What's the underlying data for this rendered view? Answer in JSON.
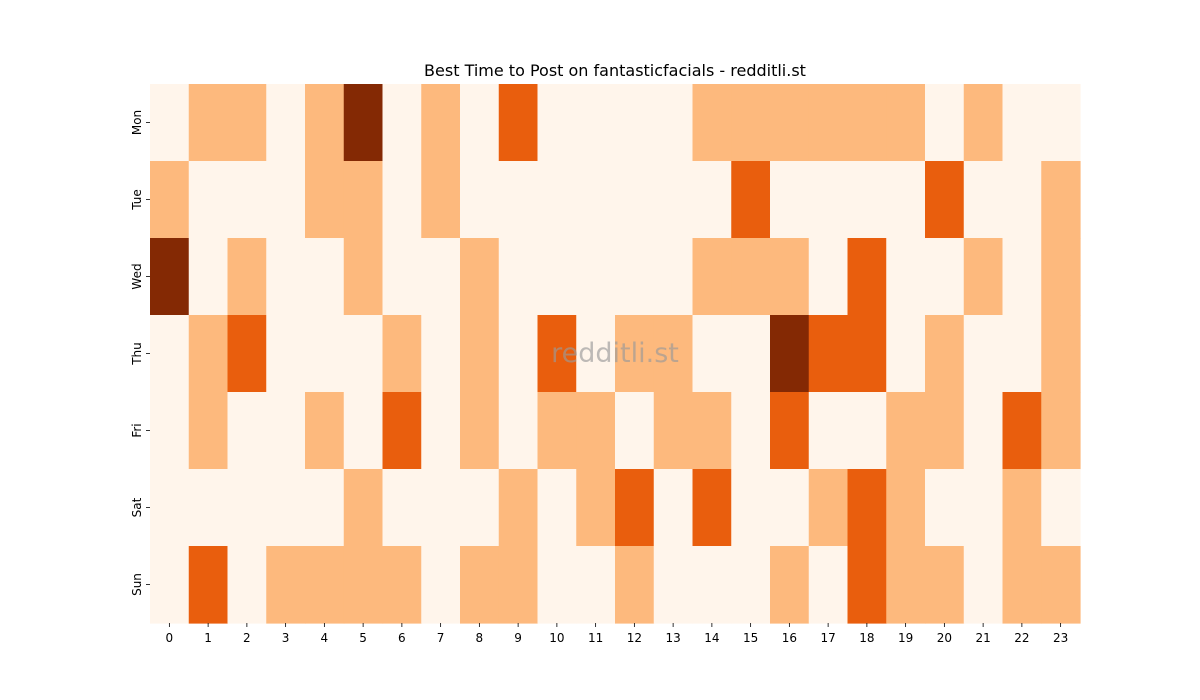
{
  "chart_data": {
    "type": "heatmap",
    "title": "Best Time to Post on fantasticfacials - redditli.st",
    "xlabel": "",
    "ylabel": "",
    "x": [
      "0",
      "1",
      "2",
      "3",
      "4",
      "5",
      "6",
      "7",
      "8",
      "9",
      "10",
      "11",
      "12",
      "13",
      "14",
      "15",
      "16",
      "17",
      "18",
      "19",
      "20",
      "21",
      "22",
      "23"
    ],
    "y": [
      "Mon",
      "Tue",
      "Wed",
      "Thu",
      "Fri",
      "Sat",
      "Sun"
    ],
    "values": [
      [
        0,
        1,
        1,
        0,
        1,
        3,
        0,
        1,
        0,
        2,
        0,
        0,
        0,
        0,
        1,
        1,
        1,
        1,
        1,
        1,
        0,
        1,
        0,
        0
      ],
      [
        1,
        0,
        0,
        0,
        1,
        1,
        0,
        1,
        0,
        0,
        0,
        0,
        0,
        0,
        0,
        2,
        0,
        0,
        0,
        0,
        2,
        0,
        0,
        1
      ],
      [
        3,
        0,
        1,
        0,
        0,
        1,
        0,
        0,
        1,
        0,
        0,
        0,
        0,
        0,
        1,
        1,
        1,
        0,
        2,
        0,
        0,
        1,
        0,
        1
      ],
      [
        0,
        1,
        2,
        0,
        0,
        0,
        1,
        0,
        1,
        0,
        2,
        0,
        1,
        1,
        0,
        0,
        3,
        2,
        2,
        0,
        1,
        0,
        0,
        1
      ],
      [
        0,
        1,
        0,
        0,
        1,
        0,
        2,
        0,
        1,
        0,
        1,
        1,
        0,
        1,
        1,
        0,
        2,
        0,
        0,
        1,
        1,
        0,
        2,
        1
      ],
      [
        0,
        0,
        0,
        0,
        0,
        1,
        0,
        0,
        0,
        1,
        0,
        1,
        2,
        0,
        2,
        0,
        0,
        1,
        2,
        1,
        0,
        0,
        1,
        0
      ],
      [
        0,
        2,
        0,
        1,
        1,
        1,
        1,
        0,
        1,
        1,
        0,
        0,
        1,
        0,
        0,
        0,
        1,
        0,
        2,
        1,
        1,
        0,
        1,
        1
      ]
    ],
    "colors": [
      "#fff5eb",
      "#fdb97d",
      "#e95e0d",
      "#842904"
    ],
    "colorbar": false,
    "grid": false,
    "watermark": "redditli.st"
  }
}
